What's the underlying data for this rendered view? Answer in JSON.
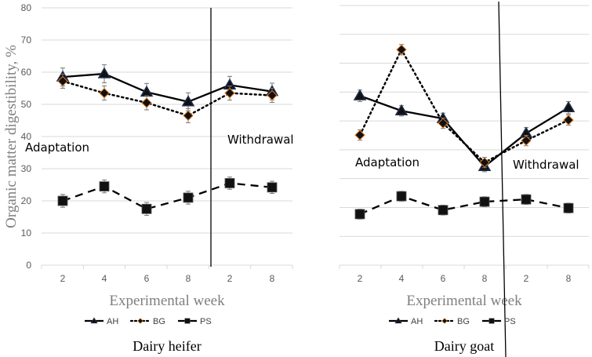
{
  "chart_data": [
    {
      "type": "line",
      "title": "Dairy heifer",
      "xlabel": "Experimental week",
      "ylabel": "Organic matter digestibility, %",
      "ylim": [
        0,
        80
      ],
      "yticks": [
        "0",
        "10",
        "20",
        "30",
        "40",
        "50",
        "60",
        "70",
        "80"
      ],
      "categories": [
        "2",
        "4",
        "6",
        "8",
        "2",
        "8"
      ],
      "phases": [
        "Adaptation",
        "Withdrawal"
      ],
      "grid": true,
      "legend_position": "bottom",
      "series": [
        {
          "name": "AH",
          "values": [
            58.5,
            59.5,
            53.8,
            50.8,
            56.0,
            54.0
          ],
          "errors": [
            2.8,
            2.8,
            2.7,
            2.8,
            2.7,
            2.6
          ]
        },
        {
          "name": "BG",
          "values": [
            57.2,
            53.5,
            50.5,
            46.5,
            53.5,
            52.8
          ],
          "errors": [
            2.2,
            2.2,
            2.2,
            2.2,
            2.2,
            2.2
          ]
        },
        {
          "name": "PS",
          "values": [
            20.0,
            24.5,
            17.5,
            21.0,
            25.5,
            24.2
          ],
          "errors": [
            2.0,
            2.0,
            2.0,
            2.0,
            1.9,
            1.9
          ]
        }
      ]
    },
    {
      "type": "line",
      "title": "Dairy goat",
      "xlabel": "Experimental week",
      "ylabel": "",
      "ylim": [
        0,
        90
      ],
      "categories": [
        "2",
        "4",
        "6",
        "8",
        "2",
        "8"
      ],
      "phases": [
        "Adaptation",
        "Withdrawal"
      ],
      "grid": true,
      "legend_position": "bottom",
      "series": [
        {
          "name": "AH",
          "values": [
            58.7,
            53.5,
            50.8,
            34.2,
            45.7,
            54.6
          ],
          "errors": [
            2.0,
            1.8,
            1.9,
            1.8,
            2.0,
            2.1
          ]
        },
        {
          "name": "BG",
          "values": [
            45.1,
            74.7,
            49.2,
            35.6,
            43.2,
            50.3
          ],
          "errors": [
            1.8,
            1.8,
            1.8,
            1.8,
            1.8,
            1.8
          ]
        },
        {
          "name": "PS",
          "values": [
            17.7,
            23.9,
            19.1,
            22.0,
            22.8,
            19.8
          ],
          "errors": [
            1.7,
            1.7,
            1.7,
            1.7,
            1.7,
            1.7
          ]
        }
      ]
    }
  ],
  "colors": {
    "line": "#000000",
    "triangle": "#1f2d4d",
    "diamond_edge": "#e07b20",
    "grid": "#d9d9d9"
  }
}
